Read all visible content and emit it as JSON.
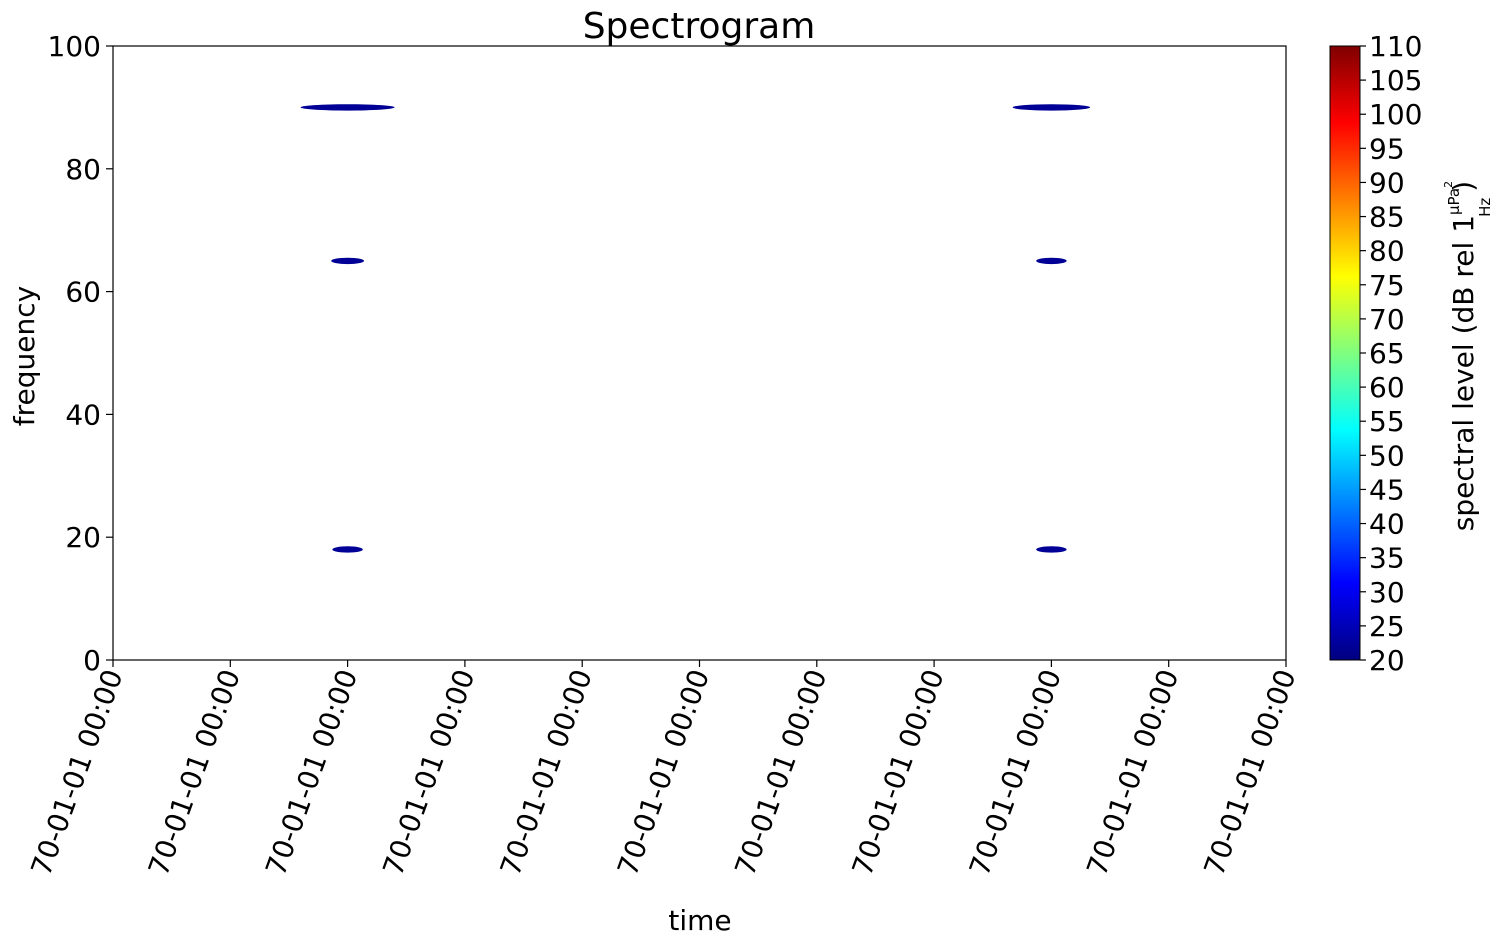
{
  "chart_data": {
    "type": "heatmap",
    "title": "Spectrogram",
    "xlabel": "time",
    "ylabel": "frequency",
    "ylim": [
      0,
      100
    ],
    "yticks": [
      0,
      20,
      40,
      60,
      80,
      100
    ],
    "xticks": [
      "70-01-01 00:00",
      "70-01-01 00:00",
      "70-01-01 00:00",
      "70-01-01 00:00",
      "70-01-01 00:00",
      "70-01-01 00:00",
      "70-01-01 00:00",
      "70-01-01 00:00",
      "70-01-01 00:00",
      "70-01-01 00:00",
      "70-01-01 00:00"
    ],
    "grid": false,
    "colorbar": {
      "label_main": "spectral level (dB rel 1",
      "label_num": "µPa",
      "label_num_sup": "2",
      "label_den": "Hz",
      "label_close": ")",
      "min": 20,
      "max": 110,
      "ticks": [
        20,
        25,
        30,
        35,
        40,
        45,
        50,
        55,
        60,
        65,
        70,
        75,
        80,
        85,
        90,
        95,
        100,
        105,
        110
      ],
      "colormap": "jet"
    },
    "blobs": [
      {
        "x_tick": 2,
        "frequency": 90,
        "half_width_ticks": 0.4,
        "level": 22
      },
      {
        "x_tick": 2,
        "frequency": 65,
        "half_width_ticks": 0.14,
        "level": 22
      },
      {
        "x_tick": 2,
        "frequency": 18,
        "half_width_ticks": 0.13,
        "level": 22
      },
      {
        "x_tick": 8,
        "frequency": 90,
        "half_width_ticks": 0.33,
        "level": 22
      },
      {
        "x_tick": 8,
        "frequency": 65,
        "half_width_ticks": 0.13,
        "level": 22
      },
      {
        "x_tick": 8,
        "frequency": 18,
        "half_width_ticks": 0.13,
        "level": 22
      }
    ]
  }
}
